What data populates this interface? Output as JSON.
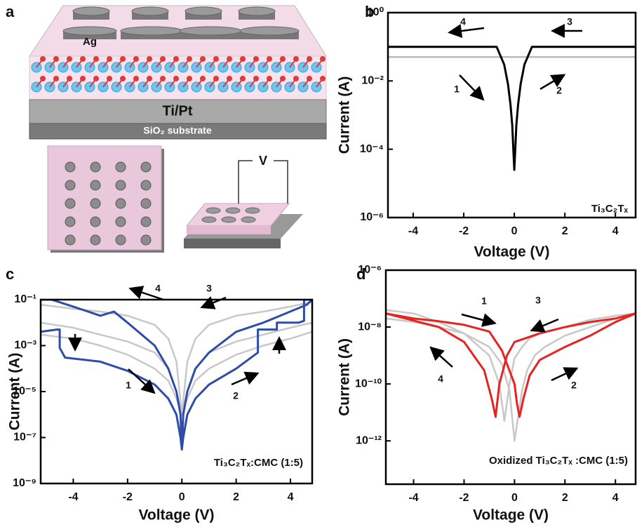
{
  "diagram": {
    "label": "a",
    "electrode": "Ag",
    "bottom_electrode": "Ti/Pt",
    "substrate": "SiO₂ substrate",
    "bias": "V"
  },
  "chart_data": [
    {
      "type": "line",
      "panel": "b",
      "xlabel": "Voltage (V)",
      "ylabel": "Current (A)",
      "yscale": "log",
      "label": "Ti₃C₂Tₓ",
      "annotations": [
        "1",
        "2",
        "3",
        "4"
      ],
      "xlim": [
        -5,
        4.8
      ],
      "ylim": [
        1e-06,
        1
      ],
      "xticks": [
        -4,
        -2,
        0,
        2,
        4
      ],
      "yticks": [
        {
          "value": 1e-06,
          "label": "10⁻⁶"
        },
        {
          "value": 0.0001,
          "label": "10⁻⁴"
        },
        {
          "value": 0.01,
          "label": "10⁻²"
        },
        {
          "value": 1,
          "label": "10⁰"
        }
      ],
      "series": [
        {
          "color": "#bbbbbb",
          "x": [
            -5,
            4.8
          ],
          "values": [
            0.05,
            0.05
          ]
        },
        {
          "color": "#000000",
          "x": [
            -5,
            -2,
            -0.7,
            -0.4,
            -0.25,
            -0.15,
            -0.08,
            -0.04,
            0,
            0.04,
            0.08,
            0.15,
            0.25,
            0.4,
            0.7,
            2,
            4.8
          ],
          "values": [
            0.1,
            0.1,
            0.1,
            0.03,
            0.008,
            0.002,
            0.0005,
            0.0001,
            2.5e-05,
            0.0001,
            0.0005,
            0.002,
            0.008,
            0.03,
            0.1,
            0.1,
            0.1
          ]
        }
      ]
    },
    {
      "type": "line",
      "panel": "c",
      "xlabel": "Voltage (V)",
      "ylabel": "Current (A)",
      "yscale": "log",
      "label": "Ti₃C₂Tₓ:CMC (1:5)",
      "annotations": [
        "1",
        "2",
        "3",
        "4"
      ],
      "xlim": [
        -5.2,
        4.8
      ],
      "ylim": [
        1e-09,
        0.1
      ],
      "xticks": [
        -4,
        -2,
        0,
        2,
        4
      ],
      "yticks": [
        {
          "value": 1e-09,
          "label": "10⁻⁹"
        },
        {
          "value": 1e-07,
          "label": "10⁻⁷"
        },
        {
          "value": 1e-05,
          "label": "10⁻⁵"
        },
        {
          "value": 0.001,
          "label": "10⁻³"
        },
        {
          "value": 0.1,
          "label": "10⁻¹"
        }
      ],
      "series": [
        {
          "color": "#c8c8c8",
          "x": [
            -5.2,
            -4,
            -3,
            -2,
            -1,
            -0.5,
            -0.2,
            0,
            0.2,
            0.5,
            1,
            2,
            3,
            4,
            4.8
          ],
          "values": [
            0.06,
            0.04,
            0.03,
            0.02,
            0.008,
            0.002,
            0.0002,
            1e-06,
            0.0002,
            0.002,
            0.008,
            0.02,
            0.03,
            0.05,
            0.08
          ]
        },
        {
          "color": "#c8c8c8",
          "x": [
            -5.2,
            -4,
            -3,
            -2,
            -1,
            -0.5,
            -0.2,
            0,
            0.2,
            0.5,
            1,
            2,
            3,
            4,
            4.8
          ],
          "values": [
            0.01,
            0.006,
            0.003,
            0.0015,
            0.0005,
            0.0001,
            1e-05,
            1e-06,
            1e-05,
            0.0001,
            0.0005,
            0.0015,
            0.003,
            0.006,
            0.01
          ]
        },
        {
          "color": "#c8c8c8",
          "x": [
            -5.2,
            -4,
            -3,
            -2,
            -1,
            -0.5,
            -0.2,
            0,
            0.2,
            0.5,
            1,
            2,
            3,
            4,
            4.8
          ],
          "values": [
            0.003,
            0.002,
            0.001,
            0.0004,
            0.0001,
            3e-05,
            5e-06,
            1e-06,
            5e-06,
            3e-05,
            0.0001,
            0.0004,
            0.001,
            0.002,
            0.004
          ]
        },
        {
          "color": "#2f4da8",
          "x": [
            -5.2,
            -4.6,
            -4.5,
            -4.5,
            -4.3,
            -3,
            -2,
            -1,
            -0.5,
            -0.2,
            -0.05,
            0,
            0.05,
            0.2,
            0.5,
            1,
            2,
            2.8,
            2.8,
            3.5,
            3.5,
            4.3,
            4.5,
            4.5,
            4.8,
            4.6,
            3,
            2,
            1,
            0.5,
            0.2,
            0.05,
            0,
            -0.05,
            -0.2,
            -0.5,
            -1,
            -2,
            -2.5,
            -3,
            -4,
            -4.8,
            -5.2
          ],
          "values": [
            0.004,
            0.005,
            0.005,
            0.0008,
            0.0003,
            0.0002,
            8e-05,
            2e-05,
            5e-06,
            1e-06,
            1e-07,
            3e-08,
            1e-07,
            1e-06,
            5e-06,
            2e-05,
            0.0001,
            0.0005,
            0.005,
            0.005,
            0.01,
            0.01,
            0.012,
            0.1,
            0.1,
            0.06,
            0.01,
            0.004,
            0.0005,
            0.0001,
            1e-05,
            1e-06,
            3e-08,
            1e-06,
            1e-05,
            0.0001,
            0.001,
            0.01,
            0.03,
            0.02,
            0.05,
            0.1,
            0.1
          ]
        }
      ]
    },
    {
      "type": "line",
      "panel": "d",
      "xlabel": "Voltage (V)",
      "ylabel": "Current (A)",
      "yscale": "log",
      "label": "Oxidized Ti₃C₂Tₓ :CMC (1:5)",
      "annotations": [
        "1",
        "2",
        "3",
        "4"
      ],
      "xlim": [
        -5.1,
        4.8
      ],
      "ylim": [
        3e-14,
        1e-06
      ],
      "xticks": [
        -4,
        -2,
        0,
        2,
        4
      ],
      "yticks": [
        {
          "value": 1e-12,
          "label": "10⁻¹²"
        },
        {
          "value": 1e-10,
          "label": "10⁻¹⁰"
        },
        {
          "value": 1e-08,
          "label": "10⁻⁸"
        },
        {
          "value": 1e-06,
          "label": "10⁻⁶"
        }
      ],
      "series": [
        {
          "color": "#c8c8c8",
          "x": [
            -5.1,
            -4,
            -3,
            -2,
            -1,
            -0.6,
            -0.4,
            -0.2,
            0,
            0.3,
            0.6,
            1,
            2,
            3,
            4,
            4.8
          ],
          "values": [
            4e-08,
            3e-08,
            1.5e-08,
            6e-09,
            1e-09,
            1e-10,
            5e-12,
            1e-10,
            8e-10,
            2e-09,
            4e-09,
            6e-09,
            1e-08,
            1.8e-08,
            2.5e-08,
            3e-08
          ]
        },
        {
          "color": "#c8c8c8",
          "x": [
            -5.1,
            -4,
            -3,
            -2,
            -1,
            -0.5,
            -0.2,
            0,
            0.3,
            0.5,
            0.8,
            1.2,
            2,
            3,
            4,
            4.8
          ],
          "values": [
            2e-08,
            1.5e-08,
            1e-08,
            6e-09,
            2e-09,
            5e-10,
            6e-11,
            1e-12,
            6e-11,
            3e-10,
            1e-09,
            2e-09,
            5e-09,
            1e-08,
            2e-08,
            3e-08
          ]
        },
        {
          "color": "#e52421",
          "x": [
            -5.1,
            -3,
            -2,
            -1.2,
            -0.9,
            -0.75,
            -0.6,
            -0.3,
            0,
            1,
            2,
            3,
            4,
            4.8
          ],
          "values": [
            3e-08,
            1e-08,
            3e-09,
            3e-10,
            3e-11,
            7e-12,
            1e-10,
            1e-09,
            3e-09,
            6e-09,
            1e-08,
            1.5e-08,
            2e-08,
            3e-08
          ]
        },
        {
          "color": "#e52421",
          "x": [
            -5.1,
            -4,
            -3,
            -2,
            -1,
            -0.5,
            0,
            0.1,
            0.2,
            0.35,
            0.6,
            1,
            2,
            3,
            4,
            4.8
          ],
          "values": [
            3e-08,
            2e-08,
            1.6e-08,
            1.2e-08,
            7e-09,
            1.5e-09,
            1e-10,
            2e-11,
            7e-12,
            3e-11,
            2e-10,
            7e-10,
            2e-09,
            5e-09,
            1.5e-08,
            3e-08
          ]
        }
      ]
    }
  ]
}
